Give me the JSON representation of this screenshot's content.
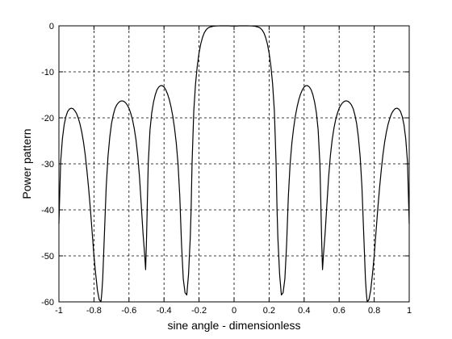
{
  "chart_data": {
    "type": "line",
    "title": "",
    "xlabel": "sine angle - dimensionless",
    "ylabel": "Power pattern",
    "xlim": [
      -1,
      1
    ],
    "ylim": [
      -60,
      0
    ],
    "xticks": [
      -1,
      -0.8,
      -0.6,
      -0.4,
      -0.2,
      0,
      0.2,
      0.4,
      0.6,
      0.8,
      1
    ],
    "xtick_labels": [
      "-1",
      "-0.8",
      "-0.6",
      "-0.4",
      "-0.2",
      "0",
      "0.2",
      "0.4",
      "0.6",
      "0.8",
      "1"
    ],
    "yticks": [
      0,
      -10,
      -20,
      -30,
      -40,
      -50,
      -60
    ],
    "ytick_labels": [
      "0",
      "-10",
      "-20",
      "-30",
      "-40",
      "-50",
      "-60"
    ],
    "grid": true,
    "grid_style": "dashed",
    "series": [
      {
        "color": "#000000",
        "x": [
          -1.0,
          -0.99,
          -0.98,
          -0.97,
          -0.96,
          -0.95,
          -0.94,
          -0.93,
          -0.92,
          -0.91,
          -0.9,
          -0.89,
          -0.88,
          -0.87,
          -0.86,
          -0.85,
          -0.84,
          -0.83,
          -0.82,
          -0.81,
          -0.8,
          -0.79,
          -0.78,
          -0.77,
          -0.76,
          -0.755,
          -0.75,
          -0.745,
          -0.74,
          -0.73,
          -0.72,
          -0.71,
          -0.7,
          -0.69,
          -0.68,
          -0.67,
          -0.66,
          -0.65,
          -0.64,
          -0.63,
          -0.62,
          -0.61,
          -0.6,
          -0.59,
          -0.58,
          -0.57,
          -0.56,
          -0.55,
          -0.54,
          -0.53,
          -0.52,
          -0.51,
          -0.505,
          -0.5,
          -0.495,
          -0.49,
          -0.48,
          -0.47,
          -0.46,
          -0.45,
          -0.44,
          -0.43,
          -0.42,
          -0.41,
          -0.4,
          -0.39,
          -0.38,
          -0.37,
          -0.36,
          -0.35,
          -0.34,
          -0.33,
          -0.32,
          -0.31,
          -0.3,
          -0.29,
          -0.28,
          -0.27,
          -0.26,
          -0.255,
          -0.25,
          -0.245,
          -0.24,
          -0.23,
          -0.22,
          -0.21,
          -0.2,
          -0.19,
          -0.18,
          -0.17,
          -0.16,
          -0.15,
          -0.14,
          -0.13,
          -0.12,
          -0.11,
          -0.1,
          -0.09,
          -0.08,
          -0.07,
          -0.06,
          -0.05,
          -0.04,
          -0.03,
          -0.02,
          -0.01,
          0.0,
          0.01,
          0.02,
          0.03,
          0.04,
          0.05,
          0.06,
          0.07,
          0.08,
          0.09,
          0.1,
          0.11,
          0.12,
          0.13,
          0.14,
          0.15,
          0.16,
          0.17,
          0.18,
          0.19,
          0.2,
          0.21,
          0.22,
          0.23,
          0.24,
          0.245,
          0.25,
          0.255,
          0.26,
          0.27,
          0.28,
          0.29,
          0.3,
          0.31,
          0.32,
          0.33,
          0.34,
          0.35,
          0.36,
          0.37,
          0.38,
          0.39,
          0.4,
          0.41,
          0.42,
          0.43,
          0.44,
          0.45,
          0.46,
          0.47,
          0.48,
          0.49,
          0.495,
          0.5,
          0.505,
          0.51,
          0.52,
          0.53,
          0.54,
          0.55,
          0.56,
          0.57,
          0.58,
          0.59,
          0.6,
          0.61,
          0.62,
          0.63,
          0.64,
          0.65,
          0.66,
          0.67,
          0.68,
          0.69,
          0.7,
          0.71,
          0.72,
          0.73,
          0.74,
          0.745,
          0.75,
          0.755,
          0.76,
          0.77,
          0.78,
          0.79,
          0.8,
          0.81,
          0.82,
          0.83,
          0.84,
          0.85,
          0.86,
          0.87,
          0.88,
          0.89,
          0.9,
          0.91,
          0.92,
          0.93,
          0.94,
          0.95,
          0.96,
          0.97,
          0.98,
          0.99,
          1.0
        ],
        "y": [
          -43.0,
          -29.5,
          -24.5,
          -21.5,
          -19.7,
          -18.6,
          -18.1,
          -17.9,
          -18.0,
          -18.4,
          -19.0,
          -20.0,
          -21.3,
          -23.0,
          -25.2,
          -28.0,
          -31.5,
          -35.5,
          -40.0,
          -45.0,
          -50.0,
          -54.0,
          -57.5,
          -59.5,
          -60.0,
          -58.0,
          -55.0,
          -50.0,
          -45.0,
          -35.0,
          -28.5,
          -24.3,
          -21.3,
          -19.4,
          -18.0,
          -17.2,
          -16.7,
          -16.4,
          -16.3,
          -16.4,
          -16.7,
          -17.2,
          -17.9,
          -19.0,
          -20.4,
          -22.3,
          -24.8,
          -28.2,
          -32.8,
          -38.8,
          -45.0,
          -50.0,
          -53.0,
          -46.5,
          -38.0,
          -30.0,
          -22.6,
          -18.9,
          -16.6,
          -15.0,
          -13.9,
          -13.3,
          -13.0,
          -13.0,
          -13.3,
          -13.9,
          -14.8,
          -16.0,
          -17.6,
          -19.6,
          -22.2,
          -25.5,
          -30.0,
          -37.0,
          -47.5,
          -55.0,
          -58.0,
          -58.5,
          -54.0,
          -50.0,
          -46.0,
          -39.5,
          -30.0,
          -18.5,
          -12.6,
          -8.7,
          -5.9,
          -3.9,
          -2.5,
          -1.5,
          -0.9,
          -0.5,
          -0.3,
          -0.2,
          -0.1,
          -0.05,
          -0.02,
          -0.01,
          -0.005,
          -0.002,
          -0.001,
          0.0,
          -0.001,
          -0.005,
          -0.02,
          -0.05,
          0.0,
          -0.05,
          -0.02,
          -0.005,
          -0.001,
          0.0,
          -0.001,
          -0.002,
          -0.005,
          -0.01,
          -0.02,
          -0.05,
          -0.1,
          -0.2,
          -0.3,
          -0.5,
          -0.9,
          -1.5,
          -2.5,
          -3.9,
          -5.9,
          -8.7,
          -12.6,
          -18.5,
          -30.0,
          -39.5,
          -46.0,
          -50.0,
          -54.0,
          -58.5,
          -58.0,
          -55.0,
          -47.5,
          -37.0,
          -30.0,
          -25.5,
          -22.2,
          -19.6,
          -17.6,
          -16.0,
          -14.8,
          -13.9,
          -13.3,
          -13.0,
          -13.0,
          -13.3,
          -13.9,
          -15.0,
          -16.6,
          -18.9,
          -22.6,
          -30.0,
          -38.0,
          -46.5,
          -53.0,
          -50.0,
          -45.0,
          -38.8,
          -32.8,
          -28.2,
          -24.8,
          -22.3,
          -20.4,
          -19.0,
          -17.9,
          -17.2,
          -16.7,
          -16.4,
          -16.3,
          -16.4,
          -16.7,
          -17.2,
          -18.0,
          -19.4,
          -21.3,
          -24.3,
          -28.5,
          -35.0,
          -45.0,
          -50.0,
          -55.0,
          -58.0,
          -60.0,
          -59.5,
          -57.5,
          -54.0,
          -50.0,
          -45.0,
          -40.0,
          -35.5,
          -31.5,
          -28.0,
          -25.2,
          -23.0,
          -21.3,
          -20.0,
          -19.0,
          -18.4,
          -18.0,
          -17.9,
          -18.1,
          -18.6,
          -19.7,
          -21.5,
          -24.5,
          -29.5,
          -43.0
        ]
      }
    ]
  }
}
